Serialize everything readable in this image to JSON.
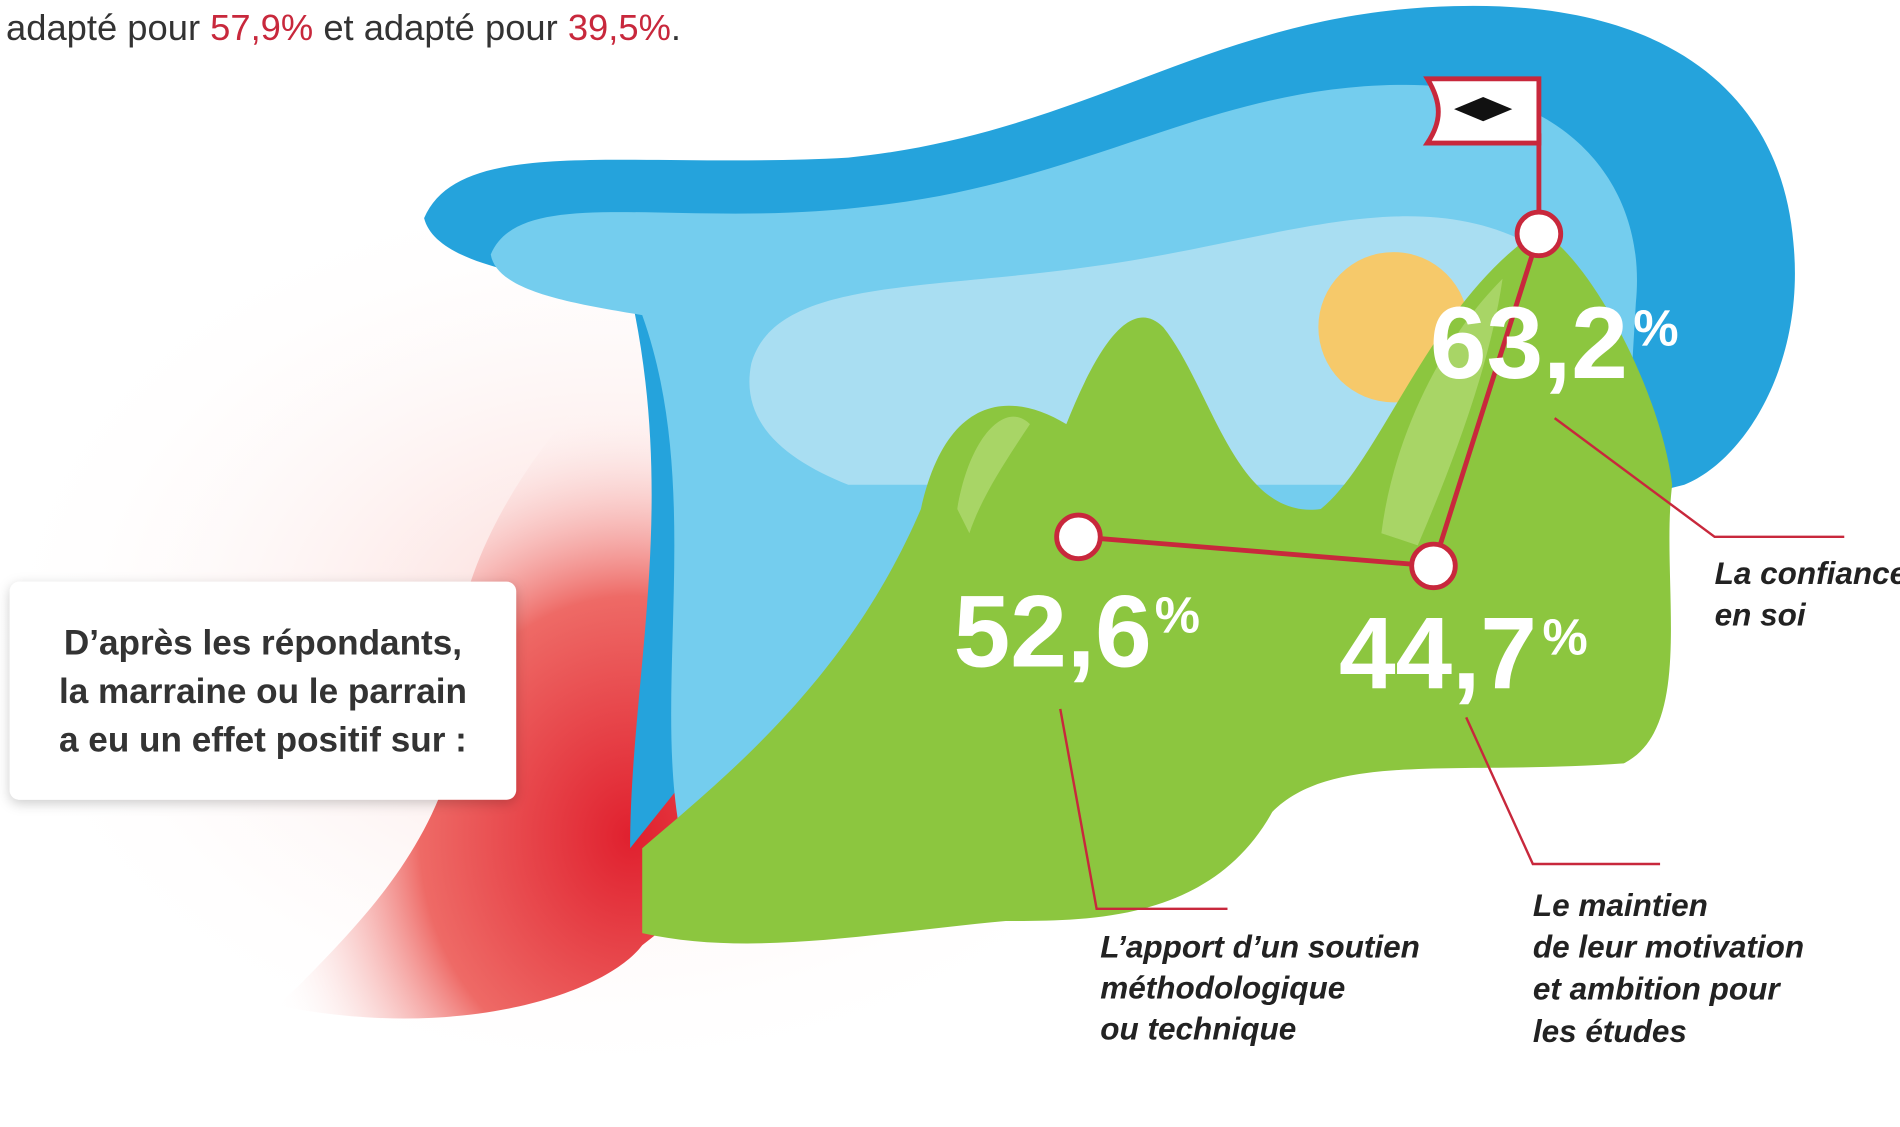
{
  "intro": {
    "parts": [
      "adapté pour ",
      "57,9%",
      " et adapté pour ",
      "39,5%",
      "."
    ]
  },
  "box": {
    "lines": [
      "D’après les répondants,",
      "la marraine ou le parrain",
      "a eu un effet positif sur :"
    ]
  },
  "items": [
    {
      "value": "63,2",
      "sign": "%",
      "label": [
        "La confiance",
        "en soi"
      ]
    },
    {
      "value": "52,6",
      "sign": "%",
      "label": [
        "L’apport d’un soutien",
        "méthodologique",
        "ou technique"
      ]
    },
    {
      "value": "44,7",
      "sign": "%",
      "label": [
        "Le maintien",
        "de leur motivation",
        "et ambition pour",
        "les études"
      ]
    }
  ]
}
